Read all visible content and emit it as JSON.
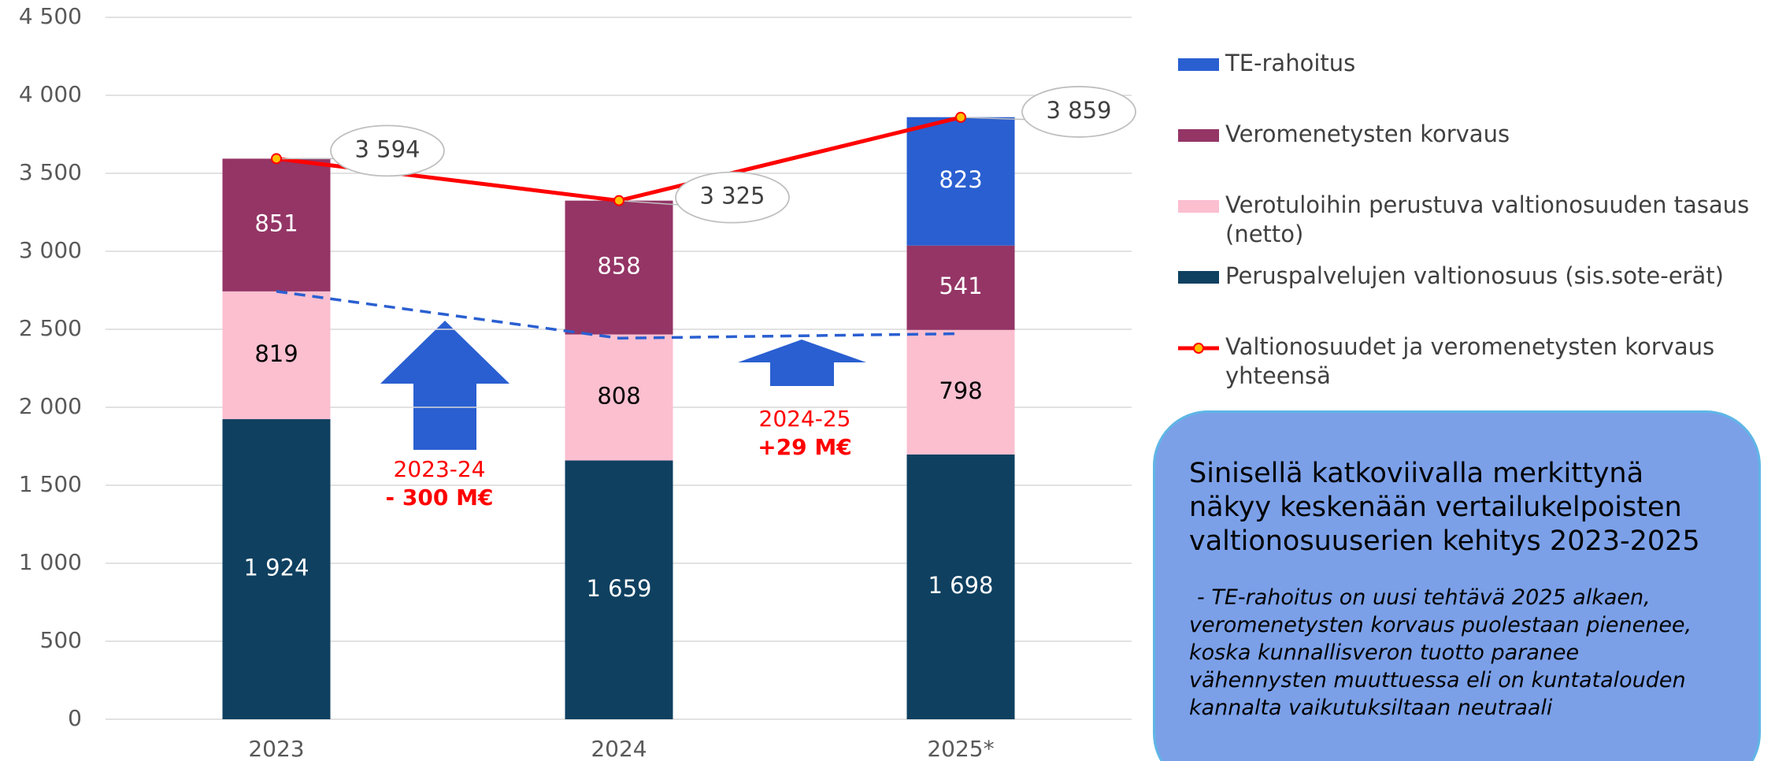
{
  "chart_data": {
    "type": "stacked_bar",
    "categories": [
      "2023",
      "2024",
      "2025*"
    ],
    "series": [
      {
        "name": "Peruspalvelujen valtionosuus (sis.sote-erät)",
        "color": "#0f4060",
        "label_color": "#ffffff",
        "values": [
          1924,
          1659,
          1698
        ],
        "value_labels": [
          "1 924",
          "1 659",
          "1 698"
        ]
      },
      {
        "name": "Verotuloihin perustuva valtionosuuden tasaus (netto)",
        "color": "#fbbfd0",
        "label_color": "#000000",
        "values": [
          819,
          808,
          798
        ]
      },
      {
        "name": "Veromenetysten korvaus",
        "color": "#943566",
        "label_color": "#ffffff",
        "values": [
          851,
          858,
          541
        ]
      },
      {
        "name": "TE-rahoitus",
        "color": "#2a5fd1",
        "label_color": "#ffffff",
        "values": [
          null,
          null,
          823
        ]
      }
    ],
    "line": {
      "name": "Valtionosuudet ja veromenetysten korvaus yhteensä",
      "color": "#ff0000",
      "marker_color": "#ffc000",
      "values": [
        3594,
        3325,
        3859
      ],
      "value_labels": [
        "3 594",
        "3 325",
        "3 859"
      ]
    },
    "dashed_line": {
      "color": "#2a5fd1",
      "values": [
        2743,
        2443,
        2472
      ]
    },
    "ylim": [
      0,
      4500
    ],
    "yticks": [
      0,
      500,
      {
        "value": 1000,
        "label": "1 000"
      },
      {
        "value": 1500,
        "label": "1 500"
      },
      {
        "value": 2000,
        "label": "2 000"
      },
      {
        "value": 2500,
        "label": "2 500"
      },
      {
        "value": 3000,
        "label": "3 000"
      },
      {
        "value": 3500,
        "label": "3 500"
      },
      {
        "value": 4000,
        "label": "4 000"
      },
      {
        "value": 4500,
        "label": "4 500"
      }
    ],
    "grid": true,
    "annotations": [
      {
        "period": "2023-24",
        "change": "- 300 M€"
      },
      {
        "period": "2024-25",
        "change": "+29 M€"
      }
    ],
    "info_box": {
      "title_lines": [
        "Sinisellä katkoviivalla merkittynä",
        "näkyy keskenään vertailukelpoisten",
        "valtionosuuserien kehitys 2023-2025"
      ],
      "body_lines": [
        "- TE-rahoitus on uusi tehtävä 2025 alkaen,",
        "veromenetysten korvaus puolestaan pienenee,",
        "koska kunnallisveron tuotto paranee",
        "vähennysten muuttuessa eli on kuntatalouden",
        "kannalta vaikutuksiltaan neutraali"
      ]
    }
  }
}
